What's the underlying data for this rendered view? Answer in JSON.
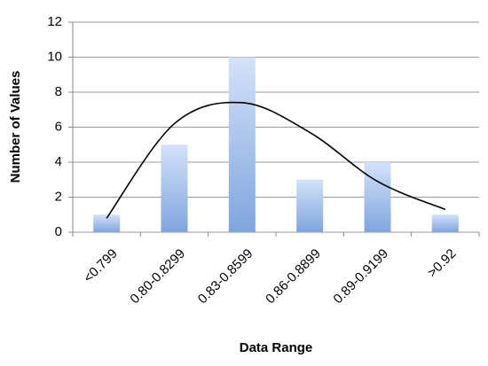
{
  "chart_data": {
    "type": "bar",
    "x_label": "Data Range",
    "y_label": "Number of Values",
    "categories": [
      "<0.799",
      "0.80-0.8299",
      "0.83-0.8599",
      "0.86-0.8899",
      "0.89-0.9199",
      ">0.92"
    ],
    "values": [
      1,
      5,
      10,
      3,
      4,
      1
    ],
    "color": "#8fb2e6",
    "curve": {
      "color": "#000000",
      "values": [
        0.8,
        6.2,
        7.4,
        5.7,
        2.9,
        1.3
      ]
    },
    "ylim": [
      0,
      12
    ],
    "yticks": [
      0,
      2,
      4,
      6,
      8,
      10,
      12
    ],
    "grid": true
  }
}
